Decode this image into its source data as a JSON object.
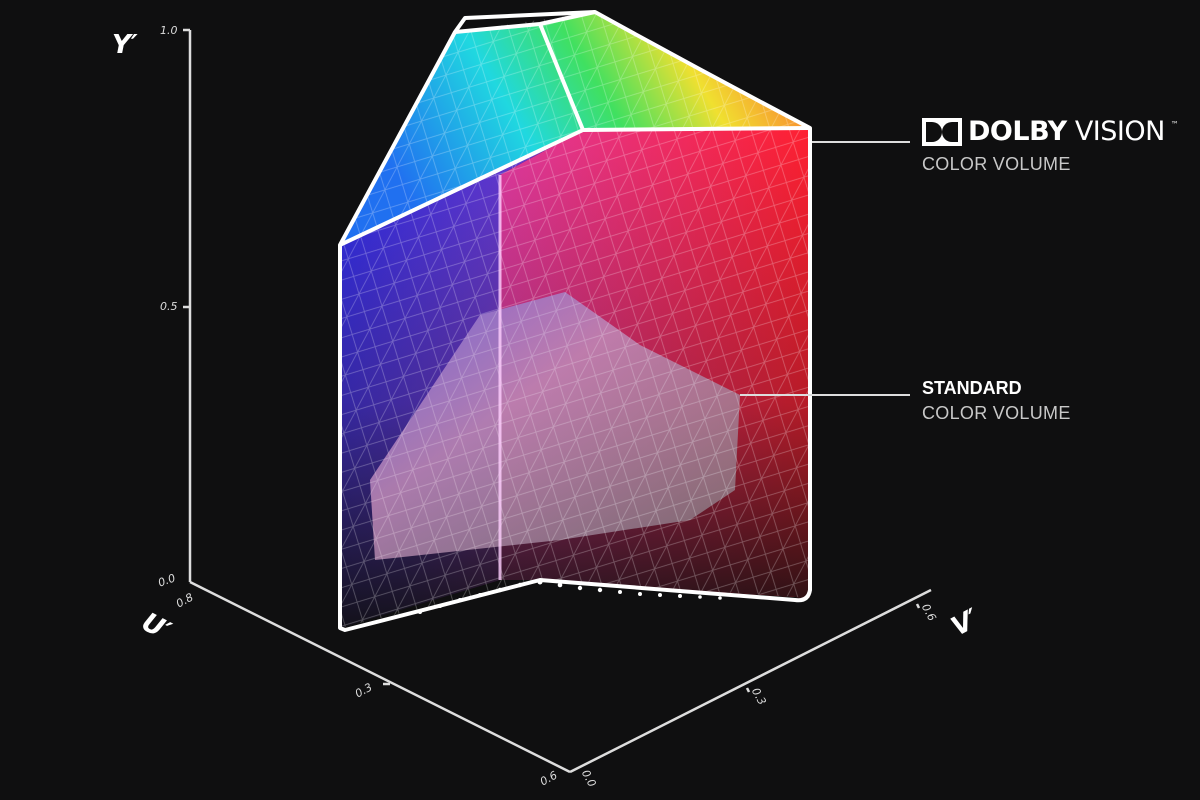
{
  "axes": {
    "y": {
      "label": "Y′",
      "ticks": [
        "1.0",
        "0.5",
        "0.0"
      ]
    },
    "u": {
      "label": "U′",
      "ticks": [
        "0.8",
        "0.3",
        "0.6"
      ]
    },
    "v": {
      "label": "V′",
      "ticks": [
        "0.0",
        "0.3",
        "0.6"
      ]
    }
  },
  "callouts": {
    "dolby": {
      "brand_bold": "DOLBY",
      "brand_light": "VISION",
      "trademark": "™",
      "subtitle": "COLOR VOLUME"
    },
    "standard": {
      "title": "STANDARD",
      "subtitle": "COLOR VOLUME"
    }
  },
  "colors": {
    "background": "#0f0f10",
    "outline": "#ffffff",
    "blue": "#2a2cf0",
    "red": "#ff2030",
    "cyan": "#20e0e0",
    "yellow": "#ffe020"
  }
}
